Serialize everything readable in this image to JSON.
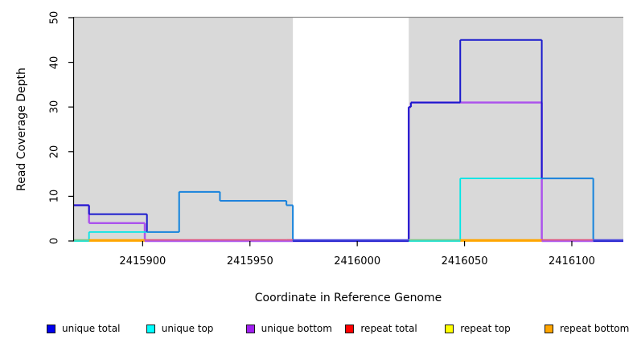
{
  "figure": {
    "background": "#ffffff"
  },
  "chart_data": {
    "type": "line",
    "line_style": "step",
    "title": "",
    "xlabel": "Coordinate in Reference Genome",
    "ylabel": "Read Coverage Depth",
    "xlim": [
      2415868,
      2416124
    ],
    "ylim": [
      0,
      50
    ],
    "grid": false,
    "legend_position": "bottom",
    "x_ticks": [
      2415900,
      2415950,
      2416000,
      2416050,
      2416100
    ],
    "x_tick_labels": [
      "2415900",
      "2415950",
      "2416000",
      "2416050",
      "2416100"
    ],
    "y_ticks": [
      0,
      10,
      20,
      30,
      40,
      50
    ],
    "y_tick_labels": [
      "0",
      "10",
      "20",
      "30",
      "40",
      "50"
    ],
    "shaded_regions": [
      {
        "x1": 2415868,
        "x2": 2415970
      },
      {
        "x1": 2416024,
        "x2": 2416124
      }
    ],
    "region_color": "#d9d9d9",
    "region_top_border_color": "#8c8c8c",
    "region_bottom_border_color": "#ababab",
    "series": [
      {
        "name": "unique total",
        "color": "#1a1acd",
        "legend_color": "#0000ee",
        "points": [
          [
            2415868,
            8
          ],
          [
            2415875,
            6
          ],
          [
            2415902,
            2
          ],
          [
            2415917,
            11
          ],
          [
            2415936,
            9
          ],
          [
            2415967,
            8
          ],
          [
            2415970,
            0
          ],
          [
            2416024,
            30
          ],
          [
            2416025,
            31
          ],
          [
            2416048,
            45
          ],
          [
            2416086,
            14
          ],
          [
            2416110,
            0
          ],
          [
            2416124,
            0
          ]
        ]
      },
      {
        "name": "unique top",
        "color": "#00e6e6",
        "legend_color": "#00ffff",
        "points": [
          [
            2415868,
            0
          ],
          [
            2415875,
            2
          ],
          [
            2415917,
            11
          ],
          [
            2415936,
            9
          ],
          [
            2415967,
            8
          ],
          [
            2415970,
            0
          ],
          [
            2416048,
            14
          ],
          [
            2416110,
            0
          ],
          [
            2416124,
            0
          ]
        ]
      },
      {
        "name": "unique bottom",
        "color": "#ac54ec",
        "legend_color": "#a020f0",
        "points": [
          [
            2415868,
            8
          ],
          [
            2415875,
            4
          ],
          [
            2415901,
            0
          ],
          [
            2416024,
            30
          ],
          [
            2416025,
            31
          ],
          [
            2416086,
            0
          ],
          [
            2416124,
            0
          ]
        ]
      },
      {
        "name": "repeat total",
        "color": "#ff0000",
        "legend_color": "#ff0000",
        "points": [
          [
            2415868,
            0
          ],
          [
            2416124,
            0
          ]
        ]
      },
      {
        "name": "repeat top",
        "color": "#ffff00",
        "legend_color": "#ffff00",
        "points": [
          [
            2415868,
            0
          ],
          [
            2416124,
            0
          ]
        ]
      },
      {
        "name": "repeat bottom",
        "color": "#ffa500",
        "legend_color": "#ffa500",
        "points": [
          [
            2415868,
            0
          ],
          [
            2416124,
            0
          ]
        ]
      }
    ],
    "overlap_colors": {
      "total_equals_top_blend": "#1e82dc",
      "zero_when_total_zero": "#5552de",
      "zero_when_top_zero": "#7cca90",
      "zero_when_bottom_zero": "#de5a85",
      "zero_repeat_only": "#ffa500"
    }
  }
}
